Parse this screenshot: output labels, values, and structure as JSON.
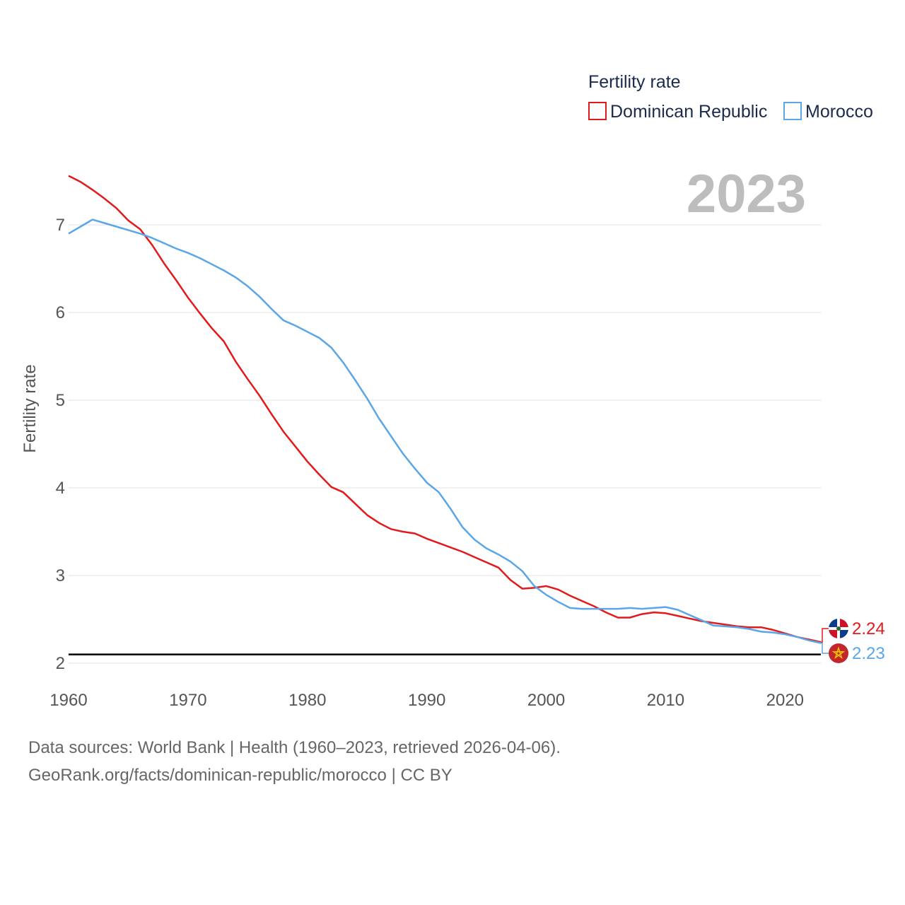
{
  "chart_data": {
    "type": "line",
    "legend_title": "Fertility rate",
    "ylabel": "Fertility rate",
    "year_label": "2023",
    "xlim": [
      1960,
      2023
    ],
    "ylim": [
      1.9,
      7.6
    ],
    "x_ticks": [
      1960,
      1970,
      1980,
      1990,
      2000,
      2010,
      2020
    ],
    "y_ticks": [
      2,
      3,
      4,
      5,
      6,
      7
    ],
    "reference_line": 2.1,
    "series": [
      {
        "name": "Dominican Republic",
        "color": "#e31a1c",
        "end_label": "2.24",
        "x": [
          1960,
          1961,
          1962,
          1963,
          1964,
          1965,
          1966,
          1967,
          1968,
          1969,
          1970,
          1971,
          1972,
          1973,
          1974,
          1975,
          1976,
          1977,
          1978,
          1979,
          1980,
          1981,
          1982,
          1983,
          1984,
          1985,
          1986,
          1987,
          1988,
          1989,
          1990,
          1991,
          1992,
          1993,
          1994,
          1995,
          1996,
          1997,
          1998,
          1999,
          2000,
          2001,
          2002,
          2003,
          2004,
          2005,
          2006,
          2007,
          2008,
          2009,
          2010,
          2011,
          2012,
          2013,
          2014,
          2015,
          2016,
          2017,
          2018,
          2019,
          2020,
          2021,
          2022,
          2023
        ],
        "values": [
          7.56,
          7.49,
          7.4,
          7.3,
          7.19,
          7.05,
          6.95,
          6.77,
          6.56,
          6.37,
          6.17,
          5.99,
          5.82,
          5.67,
          5.44,
          5.24,
          5.05,
          4.84,
          4.64,
          4.47,
          4.3,
          4.15,
          4.01,
          3.95,
          3.82,
          3.69,
          3.6,
          3.53,
          3.5,
          3.48,
          3.42,
          3.37,
          3.32,
          3.27,
          3.21,
          3.15,
          3.09,
          2.95,
          2.85,
          2.86,
          2.88,
          2.84,
          2.77,
          2.71,
          2.65,
          2.58,
          2.52,
          2.52,
          2.56,
          2.58,
          2.57,
          2.54,
          2.51,
          2.48,
          2.46,
          2.44,
          2.42,
          2.41,
          2.41,
          2.38,
          2.34,
          2.3,
          2.27,
          2.24
        ]
      },
      {
        "name": "Morocco",
        "color": "#5aa6e6",
        "end_label": "2.23",
        "x": [
          1960,
          1961,
          1962,
          1963,
          1964,
          1965,
          1966,
          1967,
          1968,
          1969,
          1970,
          1971,
          1972,
          1973,
          1974,
          1975,
          1976,
          1977,
          1978,
          1979,
          1980,
          1981,
          1982,
          1983,
          1984,
          1985,
          1986,
          1987,
          1988,
          1989,
          1990,
          1991,
          1992,
          1993,
          1994,
          1995,
          1996,
          1997,
          1998,
          1999,
          2000,
          2001,
          2002,
          2003,
          2004,
          2005,
          2006,
          2007,
          2008,
          2009,
          2010,
          2011,
          2012,
          2013,
          2014,
          2015,
          2016,
          2017,
          2018,
          2019,
          2020,
          2021,
          2022,
          2023
        ],
        "values": [
          6.9,
          6.98,
          7.06,
          7.02,
          6.98,
          6.94,
          6.9,
          6.85,
          6.79,
          6.73,
          6.68,
          6.62,
          6.55,
          6.48,
          6.4,
          6.3,
          6.18,
          6.04,
          5.91,
          5.85,
          5.78,
          5.71,
          5.6,
          5.43,
          5.23,
          5.02,
          4.79,
          4.59,
          4.39,
          4.22,
          4.06,
          3.95,
          3.76,
          3.55,
          3.41,
          3.31,
          3.24,
          3.16,
          3.05,
          2.88,
          2.78,
          2.7,
          2.63,
          2.62,
          2.62,
          2.62,
          2.62,
          2.63,
          2.62,
          2.63,
          2.64,
          2.61,
          2.55,
          2.49,
          2.43,
          2.42,
          2.41,
          2.39,
          2.36,
          2.35,
          2.33,
          2.3,
          2.26,
          2.23
        ]
      }
    ]
  },
  "footer": {
    "line1": "Data sources: World Bank | Health (1960–2023, retrieved 2026-04-06).",
    "line2": "GeoRank.org/facts/dominican-republic/morocco | CC BY"
  }
}
